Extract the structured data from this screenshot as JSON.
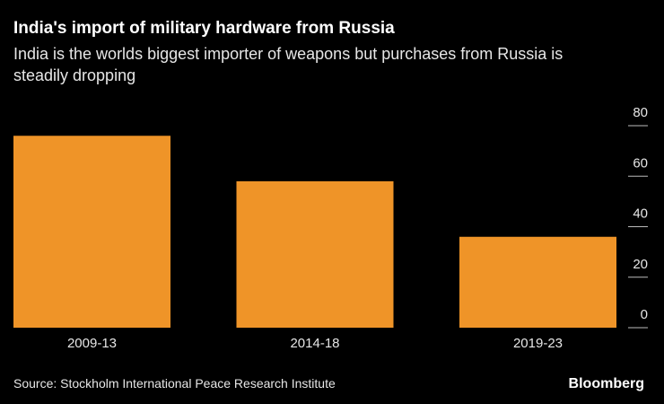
{
  "chart_data": {
    "type": "bar",
    "title": "India's import of military hardware from Russia",
    "subtitle": "India is the worlds biggest importer of weapons but purchases from Russia is steadily dropping",
    "categories": [
      "2009-13",
      "2014-18",
      "2019-23"
    ],
    "values": [
      76,
      58,
      36
    ],
    "color": "#ef9428",
    "ylim": [
      0,
      80
    ],
    "yticks": [
      0,
      20,
      40,
      60,
      80
    ],
    "source": "Source: Stockholm International Peace Research Institute",
    "brand": "Bloomberg"
  }
}
